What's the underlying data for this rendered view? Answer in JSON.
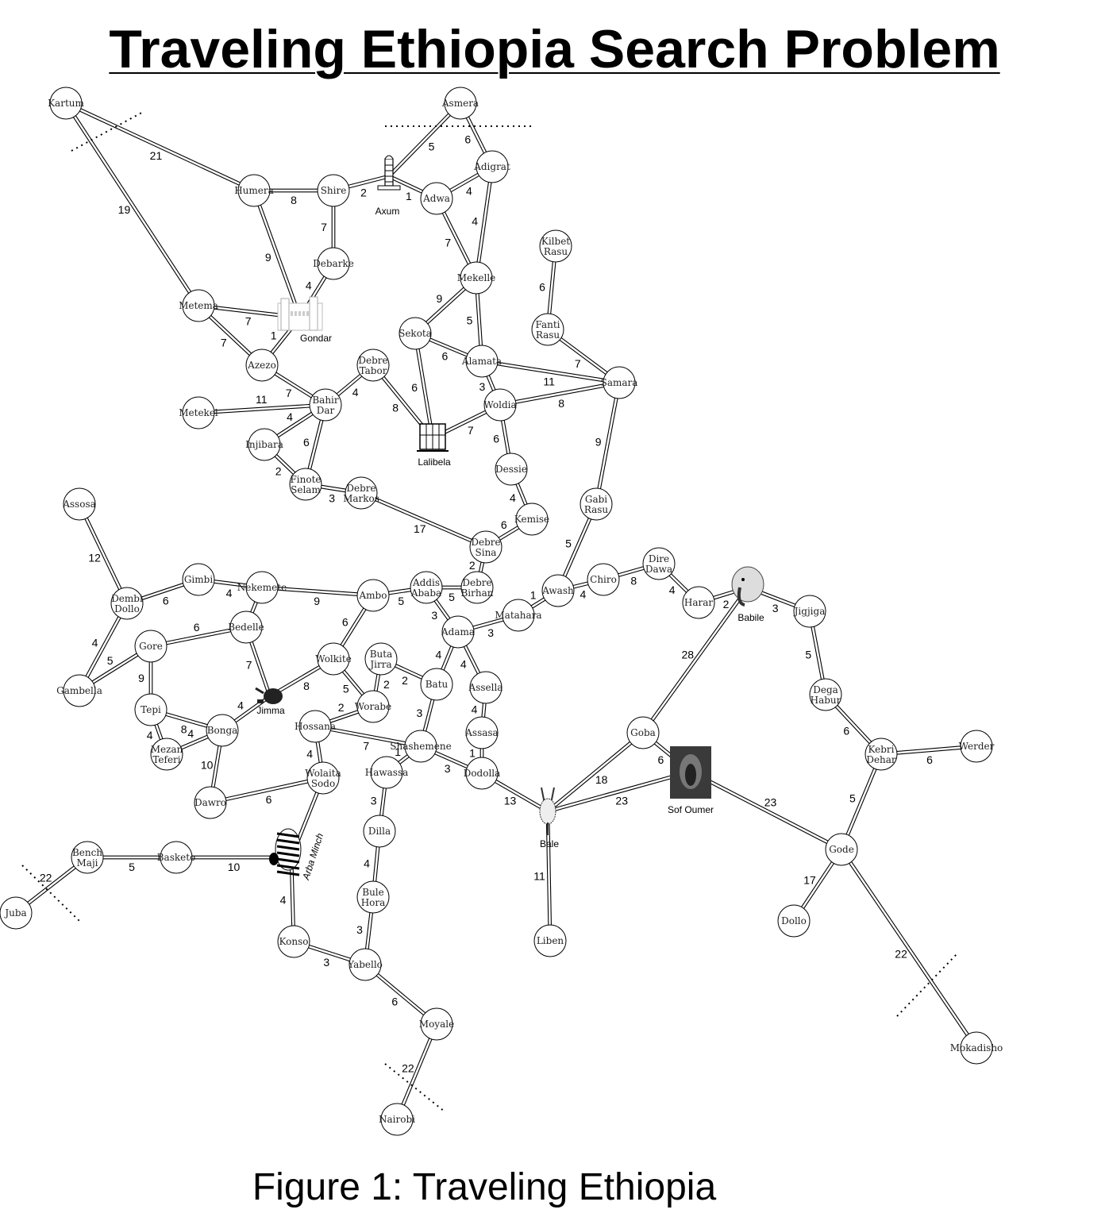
{
  "title": "Traveling Ethiopia Search Problem",
  "caption": "Figure 1: Traveling Ethiopia",
  "cities": [
    {
      "id": "kartum",
      "label": "Kartum"
    },
    {
      "id": "asmera",
      "label": "Asmera"
    },
    {
      "id": "humera",
      "label": "Humera"
    },
    {
      "id": "shire",
      "label": "Shire"
    },
    {
      "id": "adwa",
      "label": "Adwa"
    },
    {
      "id": "adigrat",
      "label": "Adigrat"
    },
    {
      "id": "debarke",
      "label": "Debarke"
    },
    {
      "id": "mekelle",
      "label": "Mekelle"
    },
    {
      "id": "kilbet_rasu",
      "label": "Kilbet\nRasu"
    },
    {
      "id": "metema",
      "label": "Metema"
    },
    {
      "id": "fanti_rasu",
      "label": "Fanti\nRasu"
    },
    {
      "id": "sekota",
      "label": "Sekota"
    },
    {
      "id": "alamata",
      "label": "Alamata"
    },
    {
      "id": "azezo",
      "label": "Azezo"
    },
    {
      "id": "debre_tabor",
      "label": "Debre\nTabor"
    },
    {
      "id": "samara",
      "label": "Samara"
    },
    {
      "id": "bahir_dar",
      "label": "Bahir\nDar"
    },
    {
      "id": "woldia",
      "label": "Woldia"
    },
    {
      "id": "metekel",
      "label": "Metekel"
    },
    {
      "id": "injibara",
      "label": "Injibara"
    },
    {
      "id": "dessie",
      "label": "Dessie"
    },
    {
      "id": "finote_selam",
      "label": "Finote\nSelam"
    },
    {
      "id": "debre_markos",
      "label": "Debre\nMarkos"
    },
    {
      "id": "assosa",
      "label": "Assosa"
    },
    {
      "id": "gabi_rasu",
      "label": "Gabi\nRasu"
    },
    {
      "id": "kemise",
      "label": "Kemise"
    },
    {
      "id": "debre_sina",
      "label": "Debre\nSina"
    },
    {
      "id": "dire_dawa",
      "label": "Dire\nDawa"
    },
    {
      "id": "gimbi",
      "label": "Gimbi"
    },
    {
      "id": "chiro",
      "label": "Chiro"
    },
    {
      "id": "nekemete",
      "label": "Nekemete"
    },
    {
      "id": "addis_ababa",
      "label": "Addis\nAbaba"
    },
    {
      "id": "debre_birhan",
      "label": "Debre\nBirhan"
    },
    {
      "id": "awash",
      "label": "Awash"
    },
    {
      "id": "ambo",
      "label": "Ambo"
    },
    {
      "id": "dembi_dollo",
      "label": "Dembi\nDollo"
    },
    {
      "id": "harar",
      "label": "Harar"
    },
    {
      "id": "jigjiga",
      "label": "Jigjiga"
    },
    {
      "id": "matahara",
      "label": "Matahara"
    },
    {
      "id": "bedelle",
      "label": "Bedelle"
    },
    {
      "id": "adama",
      "label": "Adama"
    },
    {
      "id": "gore",
      "label": "Gore"
    },
    {
      "id": "wolkite",
      "label": "Wolkite"
    },
    {
      "id": "buta_jirra",
      "label": "Buta\nJirra"
    },
    {
      "id": "batu",
      "label": "Batu"
    },
    {
      "id": "assella",
      "label": "Assella"
    },
    {
      "id": "gambella",
      "label": "Gambella"
    },
    {
      "id": "dega_habur",
      "label": "Dega\nHabur"
    },
    {
      "id": "worabe",
      "label": "Worabe"
    },
    {
      "id": "tepi",
      "label": "Tepi"
    },
    {
      "id": "hossana",
      "label": "Hossana"
    },
    {
      "id": "bonga",
      "label": "Bonga"
    },
    {
      "id": "goba",
      "label": "Goba"
    },
    {
      "id": "assasa",
      "label": "Assasa"
    },
    {
      "id": "shashemene",
      "label": "Shashemene"
    },
    {
      "id": "werder",
      "label": "Werder"
    },
    {
      "id": "mezan_teferi",
      "label": "Mezan\nTeferi"
    },
    {
      "id": "kebri_dehar",
      "label": "Kebri\nDehar"
    },
    {
      "id": "wolaita_sodo",
      "label": "Wolaita\nSodo"
    },
    {
      "id": "hawassa",
      "label": "Hawassa"
    },
    {
      "id": "dodolla",
      "label": "Dodolla"
    },
    {
      "id": "dawro",
      "label": "Dawro"
    },
    {
      "id": "dilla",
      "label": "Dilla"
    },
    {
      "id": "gode",
      "label": "Gode"
    },
    {
      "id": "bench_maji",
      "label": "Bench\nMaji"
    },
    {
      "id": "basketo",
      "label": "Basketo"
    },
    {
      "id": "juba",
      "label": "Juba"
    },
    {
      "id": "bule_hora",
      "label": "Bule\nHora"
    },
    {
      "id": "dollo",
      "label": "Dollo"
    },
    {
      "id": "konso",
      "label": "Konso"
    },
    {
      "id": "liben",
      "label": "Liben"
    },
    {
      "id": "yabello",
      "label": "Yabello"
    },
    {
      "id": "moyale",
      "label": "Moyale"
    },
    {
      "id": "mokadisho",
      "label": "Mokadisho"
    },
    {
      "id": "nairobi",
      "label": "Nairobi"
    }
  ],
  "landmarks": [
    {
      "id": "axum",
      "label": "Axum",
      "icon": "obelisk-icon"
    },
    {
      "id": "gondar",
      "label": "Gondar",
      "icon": "castle-icon"
    },
    {
      "id": "lalibela",
      "label": "Lalibela",
      "icon": "church-icon"
    },
    {
      "id": "babile",
      "label": "Babile",
      "icon": "elephant-icon"
    },
    {
      "id": "jimma",
      "label": "Jimma",
      "icon": "coffee-pot-icon"
    },
    {
      "id": "sof_oumer",
      "label": "Sof Oumer",
      "icon": "cave-icon"
    },
    {
      "id": "bale",
      "label": "Bale",
      "icon": "antelope-icon"
    },
    {
      "id": "arba_minch",
      "label": "Arba Minch",
      "icon": "zebra-icon"
    }
  ],
  "roads": [
    {
      "from": "kartum",
      "to": "humera",
      "cost": "21"
    },
    {
      "from": "kartum",
      "to": "metema",
      "cost": "19"
    },
    {
      "from": "humera",
      "to": "shire",
      "cost": "8"
    },
    {
      "from": "humera",
      "to": "gondar",
      "cost": "9"
    },
    {
      "from": "shire",
      "to": "axum",
      "cost": "2"
    },
    {
      "from": "shire",
      "to": "debarke",
      "cost": "7"
    },
    {
      "from": "debarke",
      "to": "gondar",
      "cost": "4"
    },
    {
      "from": "axum",
      "to": "asmera",
      "cost": "5"
    },
    {
      "from": "axum",
      "to": "adwa",
      "cost": "1"
    },
    {
      "from": "asmera",
      "to": "adigrat",
      "cost": "6"
    },
    {
      "from": "adwa",
      "to": "adigrat",
      "cost": "4"
    },
    {
      "from": "adwa",
      "to": "mekelle",
      "cost": "7"
    },
    {
      "from": "adigrat",
      "to": "mekelle",
      "cost": "4"
    },
    {
      "from": "mekelle",
      "to": "sekota",
      "cost": "9"
    },
    {
      "from": "mekelle",
      "to": "alamata",
      "cost": "5"
    },
    {
      "from": "kilbet_rasu",
      "to": "fanti_rasu",
      "cost": "6"
    },
    {
      "from": "fanti_rasu",
      "to": "samara",
      "cost": "7"
    },
    {
      "from": "metema",
      "to": "gondar",
      "cost": "7"
    },
    {
      "from": "metema",
      "to": "azezo",
      "cost": "7"
    },
    {
      "from": "gondar",
      "to": "azezo",
      "cost": "1"
    },
    {
      "from": "azezo",
      "to": "bahir_dar",
      "cost": "7"
    },
    {
      "from": "bahir_dar",
      "to": "debre_tabor",
      "cost": "4"
    },
    {
      "from": "bahir_dar",
      "to": "metekel",
      "cost": "11"
    },
    {
      "from": "bahir_dar",
      "to": "injibara",
      "cost": "4"
    },
    {
      "from": "bahir_dar",
      "to": "finote_selam",
      "cost": "6"
    },
    {
      "from": "injibara",
      "to": "finote_selam",
      "cost": "2"
    },
    {
      "from": "finote_selam",
      "to": "debre_markos",
      "cost": "3"
    },
    {
      "from": "debre_markos",
      "to": "debre_sina",
      "cost": "17"
    },
    {
      "from": "debre_tabor",
      "to": "lalibela",
      "cost": "8"
    },
    {
      "from": "sekota",
      "to": "alamata",
      "cost": "6"
    },
    {
      "from": "sekota",
      "to": "lalibela",
      "cost": "6"
    },
    {
      "from": "lalibela",
      "to": "woldia",
      "cost": "7"
    },
    {
      "from": "alamata",
      "to": "woldia",
      "cost": "3"
    },
    {
      "from": "alamata",
      "to": "samara",
      "cost": "11"
    },
    {
      "from": "woldia",
      "to": "samara",
      "cost": "8"
    },
    {
      "from": "woldia",
      "to": "dessie",
      "cost": "6"
    },
    {
      "from": "dessie",
      "to": "kemise",
      "cost": "4"
    },
    {
      "from": "kemise",
      "to": "debre_sina",
      "cost": "6"
    },
    {
      "from": "debre_sina",
      "to": "debre_birhan",
      "cost": "2"
    },
    {
      "from": "samara",
      "to": "gabi_rasu",
      "cost": "9"
    },
    {
      "from": "gabi_rasu",
      "to": "awash",
      "cost": "5"
    },
    {
      "from": "awash",
      "to": "chiro",
      "cost": "4"
    },
    {
      "from": "awash",
      "to": "matahara",
      "cost": "1"
    },
    {
      "from": "chiro",
      "to": "dire_dawa",
      "cost": "8"
    },
    {
      "from": "dire_dawa",
      "to": "harar",
      "cost": "4"
    },
    {
      "from": "harar",
      "to": "babile",
      "cost": "2"
    },
    {
      "from": "babile",
      "to": "jigjiga",
      "cost": "3"
    },
    {
      "from": "babile",
      "to": "goba",
      "cost": "28"
    },
    {
      "from": "jigjiga",
      "to": "dega_habur",
      "cost": "5"
    },
    {
      "from": "dega_habur",
      "to": "kebri_dehar",
      "cost": "6"
    },
    {
      "from": "kebri_dehar",
      "to": "werder",
      "cost": "6"
    },
    {
      "from": "kebri_dehar",
      "to": "gode",
      "cost": "5"
    },
    {
      "from": "gode",
      "to": "sof_oumer",
      "cost": "23"
    },
    {
      "from": "gode",
      "to": "dollo",
      "cost": "17"
    },
    {
      "from": "gode",
      "to": "mokadisho",
      "cost": "22"
    },
    {
      "from": "assosa",
      "to": "dembi_dollo",
      "cost": "12"
    },
    {
      "from": "dembi_dollo",
      "to": "gimbi",
      "cost": "6"
    },
    {
      "from": "dembi_dollo",
      "to": "gambella",
      "cost": "4"
    },
    {
      "from": "gimbi",
      "to": "nekemete",
      "cost": "4"
    },
    {
      "from": "nekemete",
      "to": "ambo",
      "cost": "9"
    },
    {
      "from": "nekemete",
      "to": "bedelle",
      "cost": ""
    },
    {
      "from": "ambo",
      "to": "addis_ababa",
      "cost": "5"
    },
    {
      "from": "ambo",
      "to": "wolkite",
      "cost": "6"
    },
    {
      "from": "addis_ababa",
      "to": "debre_birhan",
      "cost": "5"
    },
    {
      "from": "addis_ababa",
      "to": "adama",
      "cost": "3"
    },
    {
      "from": "adama",
      "to": "matahara",
      "cost": "3"
    },
    {
      "from": "adama",
      "to": "batu",
      "cost": "4"
    },
    {
      "from": "adama",
      "to": "assella",
      "cost": "4"
    },
    {
      "from": "bedelle",
      "to": "gore",
      "cost": "6"
    },
    {
      "from": "bedelle",
      "to": "jimma",
      "cost": "7"
    },
    {
      "from": "gore",
      "to": "gambella",
      "cost": "5"
    },
    {
      "from": "gore",
      "to": "tepi",
      "cost": "9"
    },
    {
      "from": "jimma",
      "to": "wolkite",
      "cost": "8"
    },
    {
      "from": "jimma",
      "to": "bonga",
      "cost": "4"
    },
    {
      "from": "wolkite",
      "to": "worabe",
      "cost": "5"
    },
    {
      "from": "worabe",
      "to": "buta_jirra",
      "cost": "2"
    },
    {
      "from": "worabe",
      "to": "hossana",
      "cost": "2"
    },
    {
      "from": "buta_jirra",
      "to": "batu",
      "cost": "2"
    },
    {
      "from": "batu",
      "to": "shashemene",
      "cost": "3"
    },
    {
      "from": "assella",
      "to": "assasa",
      "cost": "4"
    },
    {
      "from": "assasa",
      "to": "dodolla",
      "cost": "1"
    },
    {
      "from": "tepi",
      "to": "bonga",
      "cost": "8"
    },
    {
      "from": "tepi",
      "to": "mezan_teferi",
      "cost": "4"
    },
    {
      "from": "bonga",
      "to": "mezan_teferi",
      "cost": "4"
    },
    {
      "from": "bonga",
      "to": "dawro",
      "cost": "10"
    },
    {
      "from": "hossana",
      "to": "shashemene",
      "cost": "7"
    },
    {
      "from": "hossana",
      "to": "wolaita_sodo",
      "cost": "4"
    },
    {
      "from": "shashemene",
      "to": "hawassa",
      "cost": "1"
    },
    {
      "from": "shashemene",
      "to": "dodolla",
      "cost": "3"
    },
    {
      "from": "dodolla",
      "to": "bale",
      "cost": "13"
    },
    {
      "from": "bale",
      "to": "goba",
      "cost": "18"
    },
    {
      "from": "bale",
      "to": "sof_oumer",
      "cost": "23"
    },
    {
      "from": "bale",
      "to": "liben",
      "cost": "11"
    },
    {
      "from": "goba",
      "to": "sof_oumer",
      "cost": "6"
    },
    {
      "from": "dawro",
      "to": "wolaita_sodo",
      "cost": "6"
    },
    {
      "from": "wolaita_sodo",
      "to": "arba_minch",
      "cost": ""
    },
    {
      "from": "bench_maji",
      "to": "basketo",
      "cost": "5"
    },
    {
      "from": "bench_maji",
      "to": "juba",
      "cost": "22"
    },
    {
      "from": "basketo",
      "to": "arba_minch",
      "cost": "10"
    },
    {
      "from": "arba_minch",
      "to": "konso",
      "cost": "4"
    },
    {
      "from": "hawassa",
      "to": "dilla",
      "cost": "3"
    },
    {
      "from": "dilla",
      "to": "bule_hora",
      "cost": "4"
    },
    {
      "from": "bule_hora",
      "to": "yabello",
      "cost": "3"
    },
    {
      "from": "konso",
      "to": "yabello",
      "cost": "3"
    },
    {
      "from": "yabello",
      "to": "moyale",
      "cost": "6"
    },
    {
      "from": "moyale",
      "to": "nairobi",
      "cost": "22"
    }
  ],
  "colors": {
    "road": "#000000",
    "node_fill": "#ffffff",
    "node_stroke": "#000000",
    "border": "#000000"
  }
}
